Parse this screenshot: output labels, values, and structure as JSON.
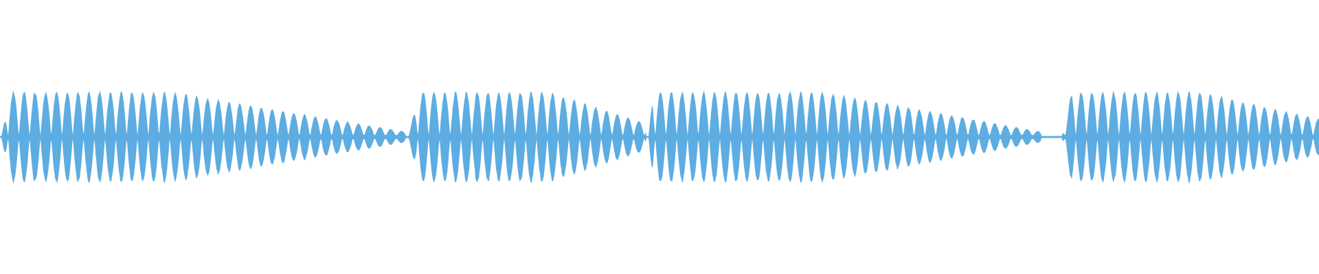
{
  "waveform": {
    "color": "#5dade2",
    "background": "#ffffff",
    "icon": "audio-waveform"
  }
}
